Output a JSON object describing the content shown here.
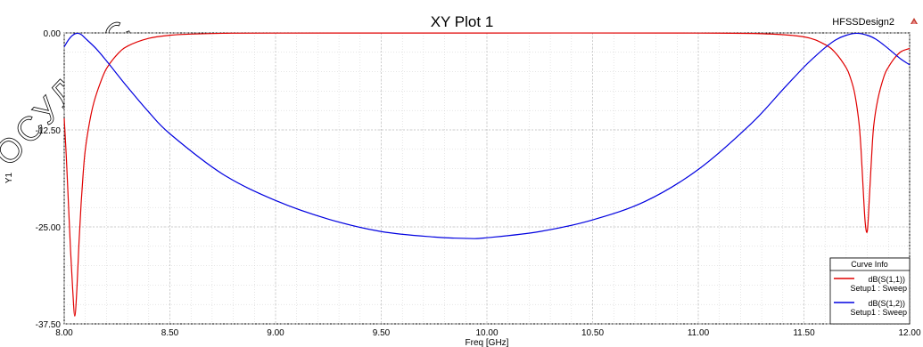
{
  "window": {
    "design_name": "HFSSDesign2",
    "watermark_text": "ГОСУДАРС"
  },
  "chart_data": {
    "type": "line",
    "title": "XY Plot 1",
    "xlabel": "Freq [GHz]",
    "ylabel": "Y1",
    "xlim": [
      8.0,
      12.0
    ],
    "ylim": [
      -37.5,
      0.0
    ],
    "xticks": [
      "8.00",
      "8.50",
      "9.00",
      "9.50",
      "10.00",
      "10.50",
      "11.00",
      "11.50",
      "12.00"
    ],
    "yticks": [
      "0.00",
      "-12.50",
      "-25.00",
      "-37.50"
    ],
    "grid": true,
    "legend": {
      "title": "Curve Info",
      "placement": "bottom-right"
    },
    "series": [
      {
        "name": "dB(S(1,1))",
        "setup": "Setup1 : Sweep",
        "color": "#e00000",
        "x": [
          8.0,
          8.01,
          8.02,
          8.03,
          8.04,
          8.05,
          8.06,
          8.07,
          8.08,
          8.09,
          8.1,
          8.12,
          8.14,
          8.17,
          8.2,
          8.25,
          8.3,
          8.4,
          8.5,
          8.6,
          8.75,
          9.0,
          10.0,
          11.0,
          11.3,
          11.5,
          11.6,
          11.65,
          11.7,
          11.72,
          11.74,
          11.76,
          11.77,
          11.78,
          11.79,
          11.8,
          11.81,
          11.82,
          11.83,
          11.85,
          11.88,
          11.9,
          11.93,
          11.96,
          12.0
        ],
        "y": [
          -11.0,
          -16.0,
          -22.0,
          -28.0,
          -33.0,
          -36.5,
          -33.0,
          -27.0,
          -22.0,
          -18.0,
          -15.0,
          -11.5,
          -9.0,
          -6.5,
          -4.6,
          -2.8,
          -1.7,
          -0.7,
          -0.3,
          -0.15,
          -0.05,
          -0.02,
          -0.01,
          -0.02,
          -0.1,
          -0.5,
          -1.5,
          -2.6,
          -4.5,
          -5.8,
          -7.8,
          -11.5,
          -15.0,
          -20.0,
          -24.5,
          -25.5,
          -21.0,
          -16.0,
          -12.0,
          -8.5,
          -5.5,
          -4.4,
          -3.2,
          -2.4,
          -2.0
        ]
      },
      {
        "name": "dB(S(1,2))",
        "setup": "Setup1 : Sweep",
        "color": "#0000e0",
        "x": [
          8.0,
          8.02,
          8.04,
          8.06,
          8.08,
          8.1,
          8.15,
          8.2,
          8.3,
          8.4,
          8.5,
          8.75,
          9.0,
          9.25,
          9.5,
          9.75,
          9.92,
          10.0,
          10.25,
          10.5,
          10.75,
          11.0,
          11.25,
          11.4,
          11.5,
          11.55,
          11.6,
          11.65,
          11.7,
          11.75,
          11.8,
          11.84,
          11.88,
          11.92,
          11.96,
          12.0
        ],
        "y": [
          -1.8,
          -0.9,
          -0.3,
          -0.05,
          -0.2,
          -0.7,
          -2.0,
          -3.6,
          -7.0,
          -10.2,
          -13.0,
          -18.2,
          -21.6,
          -24.0,
          -25.6,
          -26.3,
          -26.5,
          -26.4,
          -25.6,
          -24.1,
          -21.7,
          -17.6,
          -11.7,
          -7.3,
          -4.4,
          -3.1,
          -1.9,
          -0.9,
          -0.3,
          -0.05,
          -0.3,
          -0.8,
          -1.6,
          -2.5,
          -3.4,
          -4.1
        ]
      }
    ]
  }
}
